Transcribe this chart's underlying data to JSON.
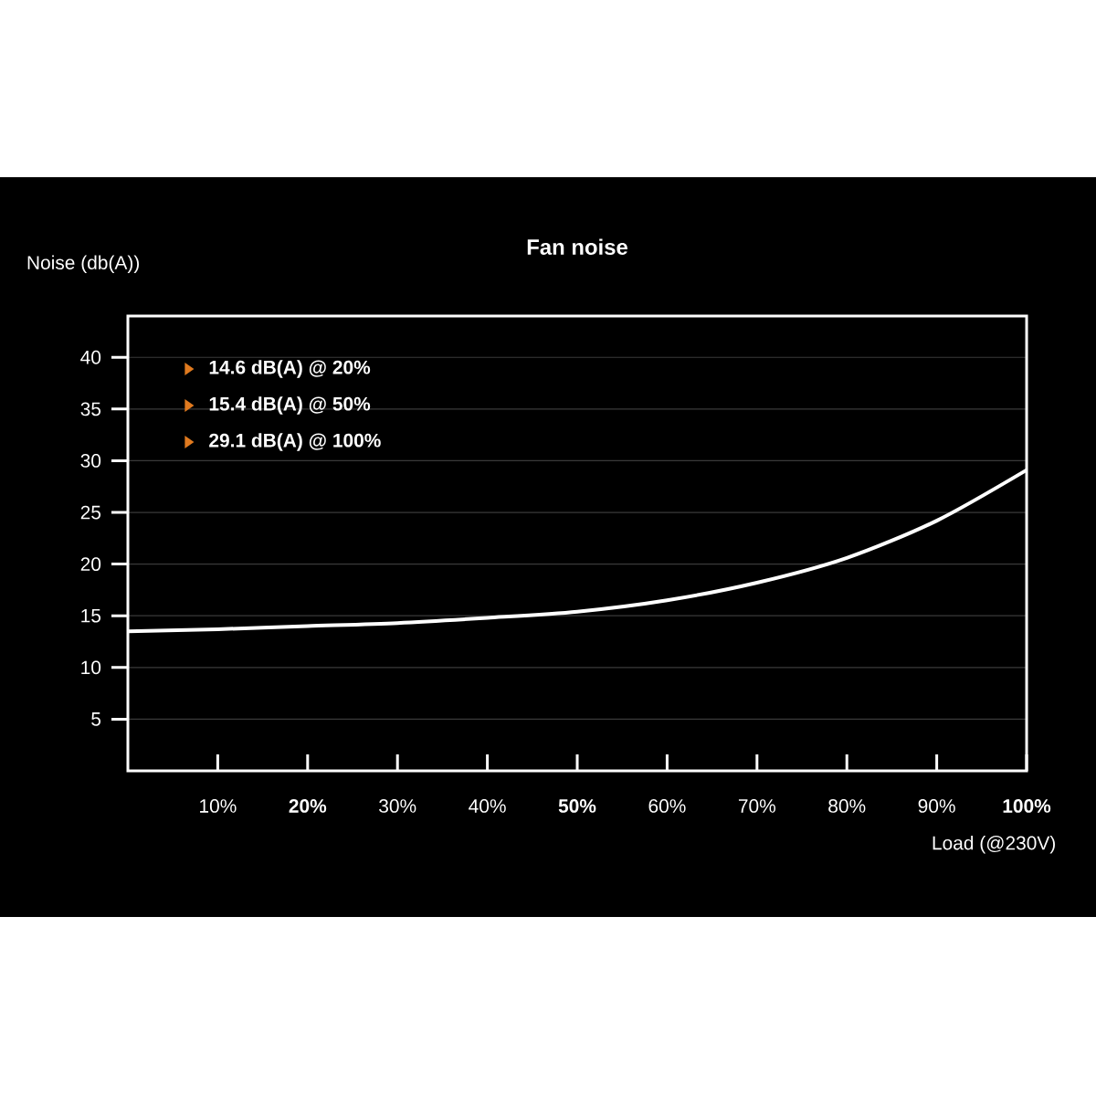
{
  "chart_data": {
    "type": "line",
    "title": "Fan noise",
    "xlabel": "Load (@230V)",
    "ylabel": "Noise (db(A))",
    "x": [
      0,
      10,
      20,
      30,
      40,
      50,
      60,
      70,
      80,
      90,
      100
    ],
    "series": [
      {
        "color": "#ffffff",
        "values": [
          13.5,
          13.7,
          14.0,
          14.3,
          14.8,
          15.4,
          16.5,
          18.2,
          20.6,
          24.2,
          29.1
        ]
      }
    ],
    "xlim": [
      0,
      100
    ],
    "ylim": [
      0,
      44
    ],
    "xticks": [
      {
        "value": 10,
        "label": "10%"
      },
      {
        "value": 20,
        "label": "**20%**"
      },
      {
        "value": 30,
        "label": "30%"
      },
      {
        "value": 40,
        "label": "40%"
      },
      {
        "value": 50,
        "label": "**50%**"
      },
      {
        "value": 60,
        "label": "60%"
      },
      {
        "value": 70,
        "label": "70%"
      },
      {
        "value": 80,
        "label": "80%"
      },
      {
        "value": 90,
        "label": "90%"
      },
      {
        "value": 100,
        "label": "**100%**"
      }
    ],
    "yticks": [
      5,
      10,
      15,
      20,
      25,
      30,
      35,
      40
    ],
    "grid": "y",
    "marker": "none",
    "annotations": [
      "14.6 dB(A) @ 20%",
      "15.4 dB(A) @ 50%",
      "29.1 dB(A) @ 100%"
    ]
  }
}
